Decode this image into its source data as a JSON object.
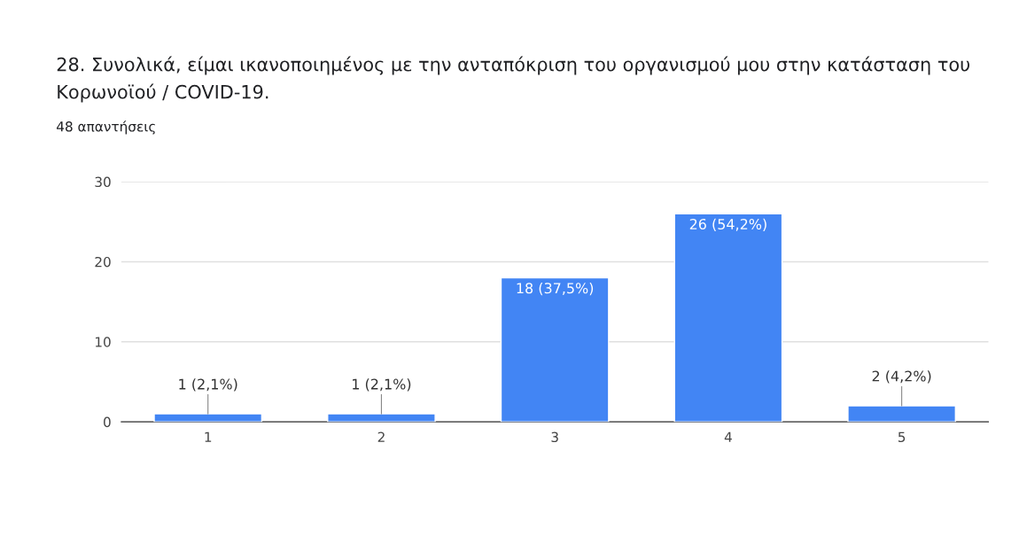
{
  "chart_data": {
    "type": "bar",
    "title": "28. Συνολικά, είμαι ικανοποιημένος με την ανταπόκριση του οργανισμού μου στην κατάσταση του Κορωνοϊού / COVID-19.",
    "subtitle": "48 απαντήσεις",
    "categories": [
      "1",
      "2",
      "3",
      "4",
      "5"
    ],
    "values": [
      1,
      1,
      18,
      26,
      2
    ],
    "value_labels": [
      "1 (2,1%)",
      "1 (2,1%)",
      "18 (37,5%)",
      "26 (54,2%)",
      "2 (4,2%)"
    ],
    "color": "#4285f4",
    "ylim": [
      0,
      30
    ],
    "yticks": [
      0,
      10,
      20,
      30
    ],
    "grid": "y"
  }
}
